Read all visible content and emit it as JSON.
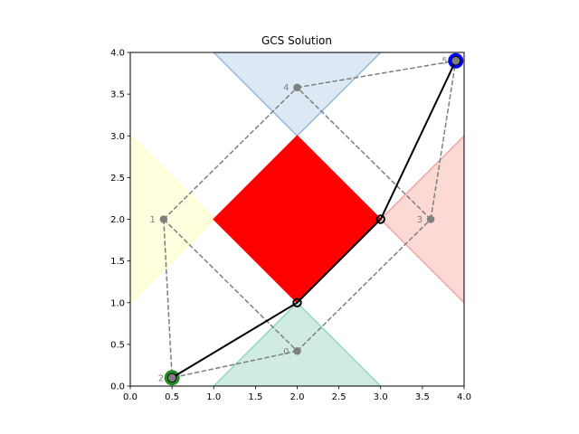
{
  "chart_data": {
    "type": "scatter",
    "title": "GCS Solution",
    "xlabel": "",
    "ylabel": "",
    "xlim": [
      0.0,
      4.0
    ],
    "ylim": [
      0.0,
      4.0
    ],
    "xticks": [
      "0.0",
      "0.5",
      "1.0",
      "1.5",
      "2.0",
      "2.5",
      "3.0",
      "3.5",
      "4.0"
    ],
    "yticks": [
      "0.0",
      "0.5",
      "1.0",
      "1.5",
      "2.0",
      "2.5",
      "3.0",
      "3.5",
      "4.0"
    ],
    "grid": false,
    "regions": [
      {
        "id": "region-bottom",
        "fill": "#d0ebe2",
        "stroke": "#94d5c3",
        "points": [
          [
            1.0,
            0.0
          ],
          [
            2.0,
            1.0
          ],
          [
            3.0,
            0.0
          ]
        ]
      },
      {
        "id": "region-left",
        "fill": "#ffffe0",
        "stroke": "#ffffb8",
        "points": [
          [
            0.0,
            1.0
          ],
          [
            1.0,
            2.0
          ],
          [
            0.0,
            3.0
          ]
        ]
      },
      {
        "id": "region-right",
        "fill": "#fdd9d5",
        "stroke": "#f4a49c",
        "points": [
          [
            3.0,
            2.0
          ],
          [
            4.0,
            1.0
          ],
          [
            4.0,
            3.0
          ]
        ]
      },
      {
        "id": "region-top",
        "fill": "#dce8f3",
        "stroke": "#94b8d9",
        "points": [
          [
            1.0,
            4.0
          ],
          [
            2.0,
            3.0
          ],
          [
            3.0,
            4.0
          ]
        ]
      },
      {
        "id": "obstacle-center",
        "fill": "#ff0000",
        "stroke": "#ff0000",
        "points": [
          [
            1.0,
            2.0
          ],
          [
            2.0,
            1.0
          ],
          [
            3.0,
            2.0
          ],
          [
            2.0,
            3.0
          ]
        ]
      }
    ],
    "nodes": [
      {
        "label": "0",
        "x": 2.0,
        "y": 0.42
      },
      {
        "label": "1",
        "x": 0.4,
        "y": 2.0
      },
      {
        "label": "2",
        "x": 0.5,
        "y": 0.1
      },
      {
        "label": "3",
        "x": 3.6,
        "y": 2.0
      },
      {
        "label": "4",
        "x": 2.0,
        "y": 3.58
      },
      {
        "label": "5",
        "x": 3.9,
        "y": 3.9
      }
    ],
    "edges": [
      [
        0,
        2
      ],
      [
        0,
        3
      ],
      [
        1,
        2
      ],
      [
        1,
        4
      ],
      [
        1,
        0
      ],
      [
        3,
        4
      ],
      [
        3,
        5
      ],
      [
        4,
        5
      ]
    ],
    "edge_color": "#7f7f7f",
    "solution_path": [
      [
        0.5,
        0.1
      ],
      [
        2.0,
        1.0
      ],
      [
        3.0,
        2.0
      ],
      [
        3.9,
        3.9
      ]
    ],
    "path_color": "#000000",
    "start": {
      "x": 0.5,
      "y": 0.1,
      "color": "#228b22"
    },
    "goal": {
      "x": 3.9,
      "y": 3.9,
      "color": "#0000ff"
    }
  }
}
